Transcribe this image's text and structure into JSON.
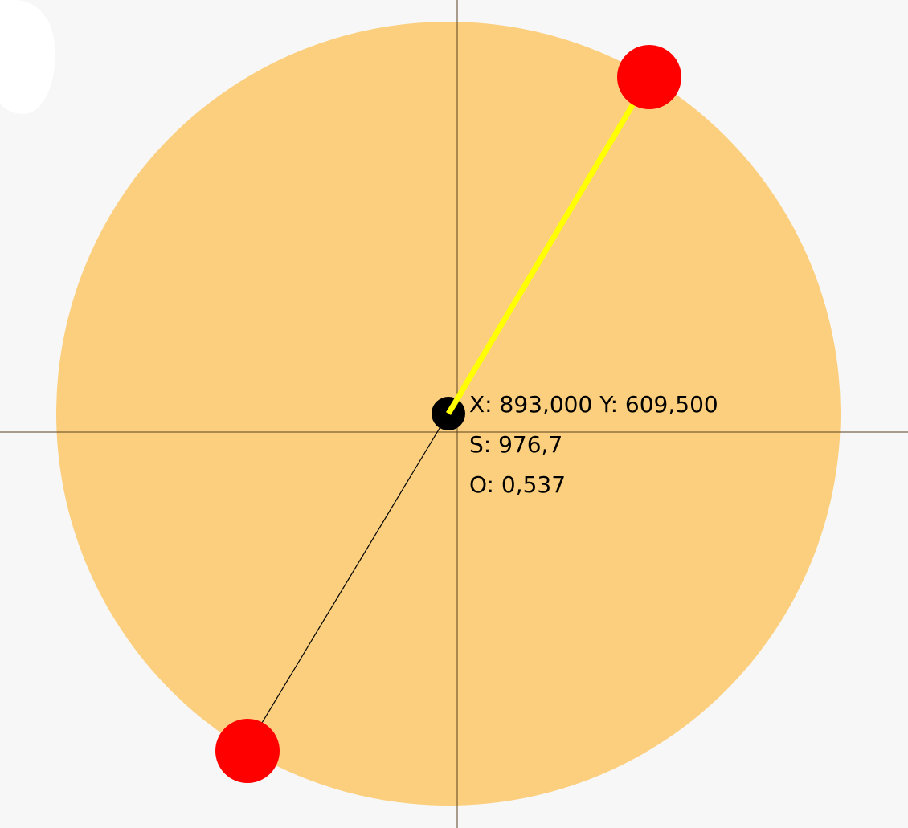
{
  "canvas": {
    "background_color": "#f7f7f7",
    "area_color": "#fbcf7d",
    "crosshair_color": "#5a4020"
  },
  "transform_widget": {
    "center_color": "#000000",
    "handle_color": "#ff0000",
    "active_arm_color": "#ffff00",
    "inactive_arm_color": "#000000"
  },
  "readout": {
    "position": "X: 893,000 Y: 609,500",
    "size": "S: 976,7",
    "opacity": "O: 0,537"
  }
}
